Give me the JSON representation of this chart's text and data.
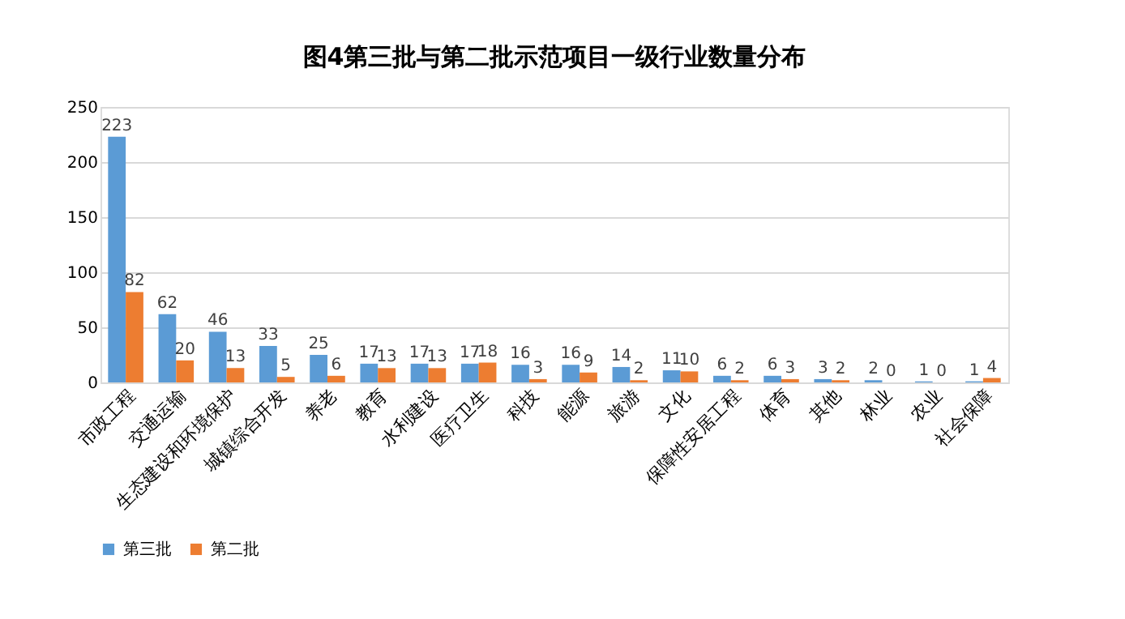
{
  "chart_data": {
    "type": "bar",
    "title": "图4第三批与第二批示范项目一级行业数量分布",
    "categories": [
      "市政工程",
      "交通运输",
      "生态建设和环境保护",
      "城镇综合开发",
      "养老",
      "教育",
      "水利建设",
      "医疗卫生",
      "科技",
      "能源",
      "旅游",
      "文化",
      "保障性安居工程",
      "体育",
      "其他",
      "林业",
      "农业",
      "社会保障"
    ],
    "series": [
      {
        "name": "第三批",
        "color": "#5b9bd5",
        "values": [
          223,
          62,
          46,
          33,
          25,
          17,
          17,
          17,
          16,
          16,
          14,
          11,
          6,
          6,
          3,
          2,
          1,
          1
        ]
      },
      {
        "name": "第二批",
        "color": "#ed7d31",
        "values": [
          82,
          20,
          13,
          5,
          6,
          13,
          13,
          18,
          3,
          9,
          2,
          10,
          2,
          3,
          2,
          0,
          0,
          4
        ]
      }
    ],
    "ylim": [
      0,
      250
    ],
    "yticks": [
      0,
      50,
      100,
      150,
      200,
      250
    ],
    "grid": "y",
    "legend": "bottom",
    "data_labels": true
  }
}
